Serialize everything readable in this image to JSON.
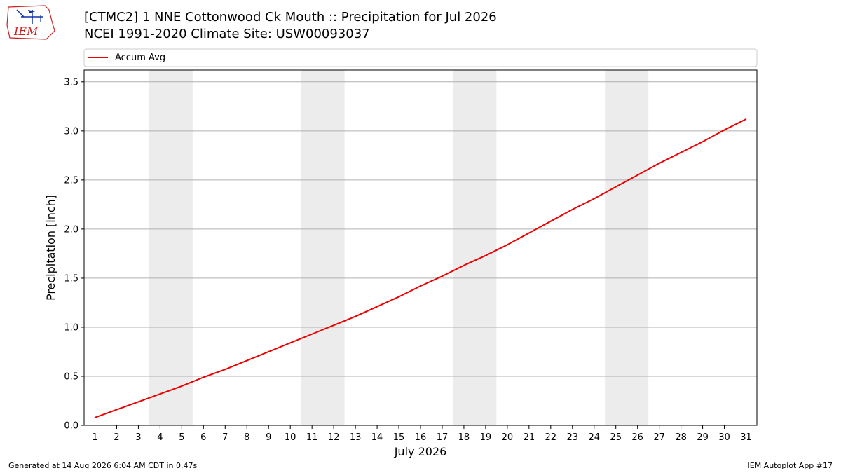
{
  "logo": {
    "text": "IEM"
  },
  "header": {
    "title_line1": "[CTMC2] 1 NNE Cottonwood Ck Mouth :: Precipitation for Jul 2026",
    "title_line2": "NCEI 1991-2020 Climate Site: USW00093037"
  },
  "footer": {
    "generated": "Generated at 14 Aug 2026 6:04 AM CDT in 0.47s",
    "app": "IEM Autoplot App #17"
  },
  "colors": {
    "series": "#ee0000",
    "weekend_band": "#ececec",
    "grid": "#b0b0b0"
  },
  "chart_data": {
    "type": "line",
    "title": "[CTMC2] 1 NNE Cottonwood Ck Mouth :: Precipitation for Jul 2026",
    "subtitle": "NCEI 1991-2020 Climate Site: USW00093037",
    "xlabel": "July 2026",
    "ylabel": "Precipitation [inch]",
    "xlim": [
      0.5,
      31.5
    ],
    "ylim": [
      0,
      3.62
    ],
    "yticks": [
      0.0,
      0.5,
      1.0,
      1.5,
      2.0,
      2.5,
      3.0,
      3.5
    ],
    "ytick_labels": [
      "0.0",
      "0.5",
      "1.0",
      "1.5",
      "2.0",
      "2.5",
      "3.0",
      "3.5"
    ],
    "x": [
      1,
      2,
      3,
      4,
      5,
      6,
      7,
      8,
      9,
      10,
      11,
      12,
      13,
      14,
      15,
      16,
      17,
      18,
      19,
      20,
      21,
      22,
      23,
      24,
      25,
      26,
      27,
      28,
      29,
      30,
      31
    ],
    "xtick_labels": [
      "1",
      "2",
      "3",
      "4",
      "5",
      "6",
      "7",
      "8",
      "9",
      "10",
      "11",
      "12",
      "13",
      "14",
      "15",
      "16",
      "17",
      "18",
      "19",
      "20",
      "21",
      "22",
      "23",
      "24",
      "25",
      "26",
      "27",
      "28",
      "29",
      "30",
      "31"
    ],
    "weekend_bands": [
      [
        3.5,
        5.5
      ],
      [
        10.5,
        12.5
      ],
      [
        17.5,
        19.5
      ],
      [
        24.5,
        26.5
      ]
    ],
    "grid": "y",
    "legend": "top",
    "series": [
      {
        "name": "Accum Avg",
        "color": "#ee0000",
        "values": [
          0.08,
          0.16,
          0.24,
          0.32,
          0.4,
          0.49,
          0.57,
          0.66,
          0.75,
          0.84,
          0.93,
          1.02,
          1.11,
          1.21,
          1.31,
          1.42,
          1.52,
          1.63,
          1.73,
          1.84,
          1.96,
          2.08,
          2.2,
          2.31,
          2.43,
          2.55,
          2.67,
          2.78,
          2.89,
          3.01,
          3.12
        ]
      }
    ]
  }
}
